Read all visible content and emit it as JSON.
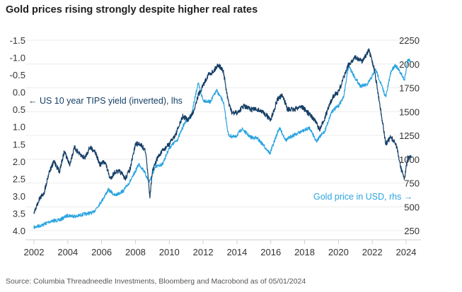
{
  "chart_data": {
    "type": "line",
    "title": "Gold prices rising strongly despite higher real rates",
    "source": "Source: Columbia Threadneedle Investments, Bloomberg and Macrobond as of 05/01/2024",
    "x_ticks": [
      "2002",
      "2004",
      "2006",
      "2008",
      "2010",
      "2012",
      "2014",
      "2016",
      "2018",
      "2020",
      "2022",
      "2024"
    ],
    "xlim": [
      2002,
      2024
    ],
    "left_axis": {
      "inverted": true,
      "ylim": [
        -1.5,
        4.0
      ],
      "ticks": [
        "-1.5",
        "-1.0",
        "-0.5",
        "0.0",
        "0.5",
        "1.0",
        "1.5",
        "2.0",
        "2.5",
        "3.0",
        "3.5",
        "4.0"
      ]
    },
    "right_axis": {
      "ylim": [
        250,
        2250
      ],
      "ticks": [
        "2250",
        "2000",
        "1750",
        "1500",
        "1250",
        "1000",
        "750",
        "500",
        "250"
      ]
    },
    "grid": "horizontal",
    "colors": {
      "tips": "#163f66",
      "gold": "#2ba4e0"
    },
    "series": [
      {
        "name": "US 10 year TIPS yield (inverted), lhs",
        "label": "← US 10 year TIPS yield (inverted), lhs",
        "axis": "left",
        "x": [
          2002.0,
          2002.3,
          2002.6,
          2002.9,
          2003.2,
          2003.5,
          2003.8,
          2004.1,
          2004.4,
          2004.7,
          2005.0,
          2005.3,
          2005.6,
          2005.9,
          2006.2,
          2006.5,
          2006.8,
          2007.1,
          2007.4,
          2007.7,
          2008.0,
          2008.3,
          2008.6,
          2008.85,
          2009.0,
          2009.3,
          2009.6,
          2010.0,
          2010.4,
          2010.8,
          2011.1,
          2011.4,
          2011.7,
          2012.0,
          2012.3,
          2012.6,
          2012.9,
          2013.2,
          2013.45,
          2013.7,
          2014.0,
          2014.4,
          2014.8,
          2015.2,
          2015.6,
          2016.0,
          2016.4,
          2016.7,
          2017.0,
          2017.4,
          2017.8,
          2018.2,
          2018.6,
          2018.9,
          2019.3,
          2019.7,
          2020.0,
          2020.3,
          2020.6,
          2021.0,
          2021.4,
          2021.8,
          2022.1,
          2022.4,
          2022.8,
          2023.1,
          2023.4,
          2023.7,
          2023.9,
          2024.1,
          2024.3
        ],
        "values": [
          3.5,
          3.1,
          2.9,
          2.3,
          2.0,
          2.3,
          1.7,
          2.1,
          1.6,
          1.8,
          1.9,
          1.6,
          1.7,
          2.1,
          2.0,
          2.5,
          2.3,
          2.3,
          2.5,
          2.2,
          1.5,
          1.5,
          1.7,
          3.0,
          2.3,
          1.9,
          1.7,
          1.5,
          1.2,
          0.7,
          0.8,
          0.6,
          0.1,
          -0.2,
          -0.5,
          -0.6,
          -0.8,
          -0.6,
          0.2,
          0.6,
          0.6,
          0.4,
          0.5,
          0.5,
          0.6,
          0.8,
          0.2,
          0.1,
          0.5,
          0.5,
          0.4,
          0.6,
          0.8,
          1.1,
          0.6,
          0.1,
          0.0,
          -0.4,
          -0.8,
          -1.0,
          -0.9,
          -1.2,
          -0.7,
          0.2,
          1.5,
          1.3,
          1.5,
          2.2,
          2.5,
          1.9,
          1.9
        ]
      },
      {
        "name": "Gold price in USD, rhs",
        "label": "Gold price in USD, rhs →",
        "axis": "right",
        "x": [
          2002.0,
          2002.5,
          2003.0,
          2003.5,
          2004.0,
          2004.5,
          2005.0,
          2005.5,
          2006.0,
          2006.4,
          2006.8,
          2007.3,
          2007.8,
          2008.2,
          2008.5,
          2008.8,
          2009.2,
          2009.6,
          2010.0,
          2010.5,
          2010.9,
          2011.3,
          2011.7,
          2012.0,
          2012.4,
          2012.8,
          2013.2,
          2013.5,
          2013.9,
          2014.3,
          2014.8,
          2015.2,
          2015.6,
          2015.95,
          2016.5,
          2016.9,
          2017.3,
          2017.8,
          2018.3,
          2018.7,
          2019.2,
          2019.6,
          2020.0,
          2020.3,
          2020.6,
          2021.0,
          2021.3,
          2021.7,
          2022.2,
          2022.5,
          2022.8,
          2023.1,
          2023.35,
          2023.7,
          2023.9,
          2024.1,
          2024.3
        ],
        "values": [
          285,
          310,
          350,
          360,
          410,
          400,
          425,
          440,
          560,
          680,
          620,
          670,
          800,
          950,
          880,
          760,
          920,
          950,
          1120,
          1210,
          1380,
          1450,
          1800,
          1620,
          1600,
          1720,
          1600,
          1250,
          1230,
          1320,
          1230,
          1220,
          1140,
          1060,
          1330,
          1200,
          1250,
          1290,
          1330,
          1190,
          1300,
          1500,
          1560,
          1650,
          1980,
          1850,
          1770,
          1780,
          1940,
          1800,
          1650,
          1920,
          1990,
          1900,
          1830,
          2050,
          2030
        ]
      }
    ]
  }
}
